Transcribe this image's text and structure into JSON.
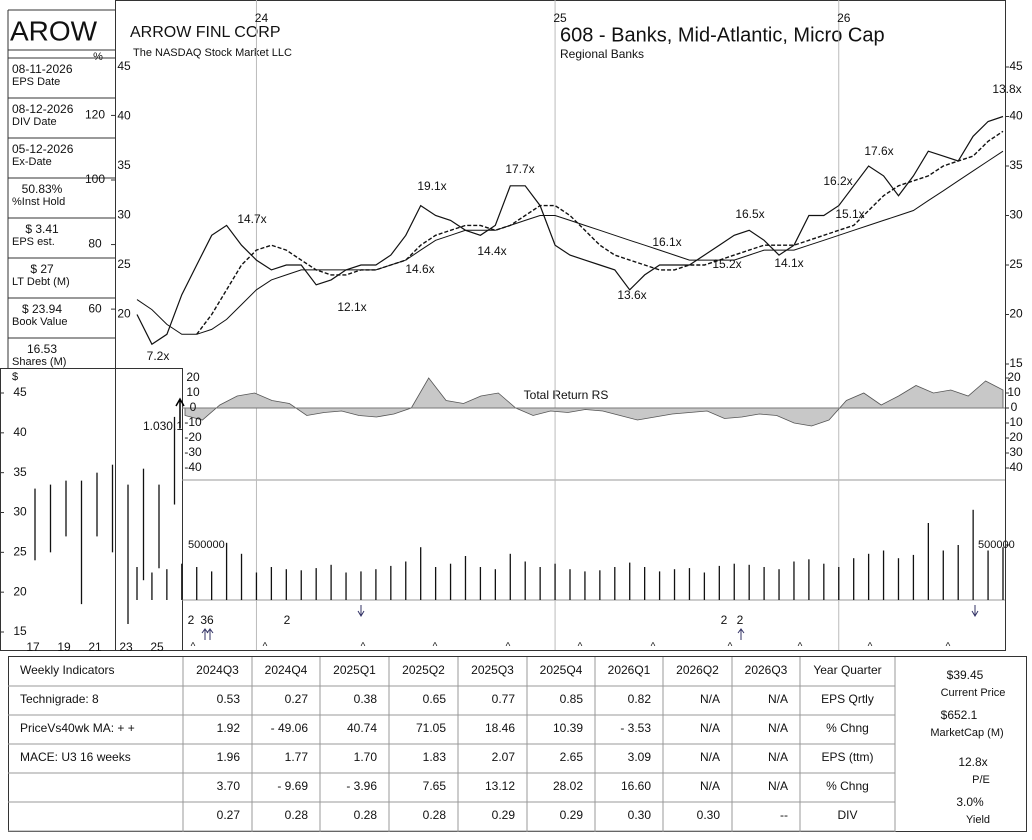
{
  "sidebar": {
    "symbol": "AROW",
    "percent_sign": "%",
    "items": [
      {
        "value": "08-11-2026",
        "label": "EPS Date"
      },
      {
        "value": "08-12-2026",
        "label": "DIV Date"
      },
      {
        "value": "05-12-2026",
        "label": "Ex-Date"
      },
      {
        "value": "50.83%",
        "label": "%Inst Hold"
      },
      {
        "value": "$ 3.41",
        "label": "EPS est."
      },
      {
        "value": "$ 27",
        "label": "LT Debt (M)"
      },
      {
        "value": "$ 23.94",
        "label": "Book Value"
      },
      {
        "value": "16.53",
        "label": "Shares (M)"
      }
    ]
  },
  "chart_data": [
    {
      "type": "line",
      "title": "ARROW FINL CORP",
      "subtitle": "The NASDAQ Stock Market LLC",
      "group": "608 - Banks, Mid-Atlantic, Micro Cap",
      "industry": "Regional Banks",
      "categories": [
        null,
        null,
        null,
        null,
        null,
        null,
        null,
        null,
        "24",
        null,
        null,
        null,
        null,
        null,
        null,
        null,
        null,
        null,
        null,
        null,
        null,
        null,
        null,
        null,
        null,
        null,
        null,
        null,
        "25",
        null,
        null,
        null,
        null,
        null,
        null,
        null,
        null,
        null,
        null,
        null,
        null,
        null,
        null,
        null,
        null,
        null,
        null,
        "26",
        null,
        null,
        null,
        null,
        null,
        null,
        null,
        null,
        null,
        null,
        null
      ],
      "series": [
        {
          "name": "Price",
          "color": "#111111",
          "style": "solid",
          "width": 1.2,
          "values": [
            20,
            17,
            18,
            22,
            25,
            28,
            29,
            27,
            25.5,
            24.5,
            25,
            25,
            23,
            23.5,
            24.5,
            25,
            25,
            26,
            28,
            31,
            30,
            29.5,
            28.5,
            28,
            29,
            33,
            33,
            31,
            27,
            26,
            25.5,
            25,
            24.5,
            22.5,
            24,
            25,
            25,
            25,
            26,
            27,
            28,
            28.5,
            27.5,
            26,
            27,
            30,
            30,
            31,
            33,
            35,
            34,
            32,
            34,
            36.5,
            36,
            35.5,
            38,
            39.5,
            40
          ]
        },
        {
          "name": "10 wk MA",
          "color": "#111111",
          "style": "dashed",
          "width": 1.4,
          "values": [
            null,
            null,
            null,
            null,
            18,
            20,
            22.5,
            25,
            26.5,
            27,
            26.5,
            25.5,
            24.5,
            24,
            24,
            24.5,
            24.5,
            25,
            25.5,
            27,
            28,
            28.5,
            29,
            29,
            28.5,
            29,
            30,
            31,
            31,
            30,
            28.5,
            27,
            26,
            25.5,
            25,
            24.5,
            24.5,
            25,
            25,
            25.5,
            26,
            26.5,
            27,
            27,
            27,
            27.5,
            28,
            28.5,
            29,
            30.5,
            32,
            33,
            33.5,
            34,
            35,
            35.5,
            36,
            37.5,
            38.5
          ]
        },
        {
          "name": "40 wk MA",
          "color": "#111111",
          "style": "solid",
          "width": 1,
          "values": [
            21.5,
            20.5,
            19,
            18,
            18,
            18.5,
            19.5,
            21,
            22.5,
            23.5,
            24,
            24.5,
            24.5,
            24.5,
            24.5,
            24.5,
            24.5,
            25,
            25.5,
            26.5,
            27.5,
            28,
            28.5,
            28.5,
            28.5,
            29,
            29.5,
            30,
            30,
            29.5,
            29,
            28.5,
            28,
            27.5,
            27,
            26.5,
            26,
            25.5,
            25.5,
            25.5,
            25.5,
            26,
            26.5,
            26.5,
            26.5,
            27,
            27.5,
            28,
            28.5,
            29,
            29.5,
            30,
            30.5,
            31.5,
            32.5,
            33.5,
            34.5,
            35.5,
            36.5
          ]
        }
      ],
      "ylim": [
        15,
        45
      ],
      "yticks": [
        15,
        20,
        25,
        30,
        35,
        40,
        45
      ],
      "y2lim": [
        43,
        135
      ],
      "y2ticks": [
        60,
        80,
        100,
        120
      ],
      "annotations": [
        "7.2x",
        "14.7x",
        "12.1x",
        "19.1x",
        "14.6x",
        "17.7x",
        "14.4x",
        "13.6x",
        "16.1x",
        "15.2x",
        "16.5x",
        "14.1x",
        "16.2x",
        "17.6x",
        "15.1x",
        "13.8x"
      ]
    },
    {
      "type": "area",
      "title": "Total Return RS",
      "color": "#c8c8c8",
      "values": [
        -5,
        -8,
        2,
        8,
        10,
        5,
        3,
        -5,
        -3,
        -2,
        -5,
        -6,
        -4,
        0,
        20,
        5,
        3,
        8,
        10,
        0,
        -5,
        -2,
        -3,
        -1,
        -2,
        -5,
        -8,
        -6,
        -4,
        -3,
        -2,
        -7,
        -6,
        -4,
        -5,
        -10,
        -12,
        -8,
        5,
        10,
        2,
        8,
        15,
        10,
        12,
        8,
        18,
        12
      ],
      "ylim": [
        -40,
        20
      ],
      "yticks": [
        20,
        10,
        0,
        -10,
        -20,
        -30,
        -40
      ]
    },
    {
      "type": "bar",
      "color": "#111111",
      "values": [
        300000,
        250000,
        280000,
        330000,
        300000,
        260000,
        520000,
        420000,
        250000,
        300000,
        280000,
        270000,
        290000,
        320000,
        250000,
        260000,
        280000,
        310000,
        350000,
        480000,
        300000,
        330000,
        400000,
        300000,
        280000,
        420000,
        350000,
        300000,
        330000,
        280000,
        260000,
        270000,
        300000,
        340000,
        300000,
        260000,
        280000,
        290000,
        250000,
        310000,
        330000,
        320000,
        300000,
        280000,
        350000,
        370000,
        330000,
        300000,
        380000,
        420000,
        450000,
        380000,
        410000,
        700000,
        450000,
        500000,
        820000,
        450000,
        480000
      ],
      "ylim": [
        0,
        1000000
      ],
      "yticks": [
        500000
      ]
    },
    {
      "type": "range",
      "axis_label": "$",
      "annotation": "1.030.1",
      "color": "#111111",
      "categories": [
        "17",
        null,
        "19",
        null,
        "21",
        null,
        "23",
        null,
        "25",
        null
      ],
      "highs": [
        33,
        33.5,
        34,
        34,
        35,
        36,
        33.5,
        35.5,
        33.5,
        42
      ],
      "lows": [
        24,
        25,
        27,
        18.5,
        27,
        25,
        16,
        21.5,
        23,
        31
      ],
      "ylim": [
        15,
        45
      ],
      "yticks": [
        15,
        20,
        25,
        30,
        35,
        40,
        45
      ]
    }
  ],
  "markers": {
    "counts": [
      "2",
      "36",
      "2",
      "2",
      "2"
    ],
    "caret": "^"
  },
  "table": {
    "header": [
      "Weekly Indicators",
      "2024Q3",
      "2024Q4",
      "2025Q1",
      "2025Q2",
      "2025Q3",
      "2025Q4",
      "2026Q1",
      "2026Q2",
      "2026Q3",
      "Year Quarter"
    ],
    "rows": [
      [
        "Technigrade: 8",
        "0.53",
        "0.27",
        "0.38",
        "0.65",
        "0.77",
        "0.85",
        "0.82",
        "N/A",
        "N/A",
        "EPS Qrtly"
      ],
      [
        "PriceVs40wk MA:  + +",
        "1.92",
        "- 49.06",
        "40.74",
        "71.05",
        "18.46",
        "10.39",
        "- 3.53",
        "N/A",
        "N/A",
        "% Chng"
      ],
      [
        "MACE: U3  16 weeks",
        "1.96",
        "1.77",
        "1.70",
        "1.83",
        "2.07",
        "2.65",
        "3.09",
        "N/A",
        "N/A",
        "EPS (ttm)"
      ],
      [
        null,
        "3.70",
        "- 9.69",
        "- 3.96",
        "7.65",
        "13.12",
        "28.02",
        "16.60",
        "N/A",
        "N/A",
        "% Chng"
      ],
      [
        null,
        "0.27",
        "0.28",
        "0.28",
        "0.28",
        "0.29",
        "0.29",
        "0.30",
        "0.30",
        "--",
        "DIV"
      ]
    ]
  },
  "summary": [
    {
      "value": "$39.45",
      "label": "Current Price"
    },
    {
      "value": "$652.1",
      "label": "MarketCap (M)"
    },
    {
      "value": "12.8x",
      "label": "P/E"
    },
    {
      "value": "3.0%",
      "label": "Yield"
    }
  ]
}
